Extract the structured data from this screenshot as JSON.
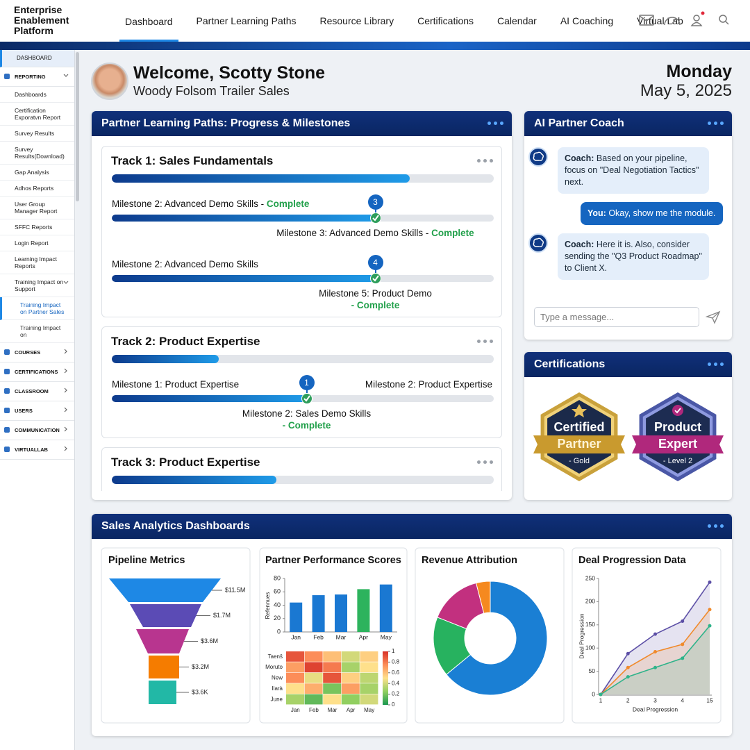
{
  "header": {
    "logo": "Enterprise Enablement Platform",
    "nav": [
      "Dashboard",
      "Partner Learning Paths",
      "Resource Library",
      "Certifications",
      "Calendar",
      "AI Coaching",
      "Virtual Lab"
    ]
  },
  "sidebar": {
    "home": "DASHBOARD",
    "sections": [
      {
        "title": "REPORTING",
        "items": [
          "Dashboards",
          "Certification Exporatvn Report",
          "Survey Results",
          "Survey Results(Download)",
          "Gap Analysis",
          "Adhos Reports",
          "User Group Manager Report",
          "SFFC Reports",
          "Login Report",
          "Learning Impact Reports",
          {
            "label": "Training Impact on Support",
            "items": [
              "Training Impact on Partner Sales",
              "Training Impact on"
            ]
          }
        ]
      },
      {
        "title": "COURSES"
      },
      {
        "title": "CERTIFICATIONS"
      },
      {
        "title": "CLASSROOM"
      },
      {
        "title": "USERS"
      },
      {
        "title": "COMMUNICATION"
      },
      {
        "title": "VIRTUALLAB"
      }
    ]
  },
  "welcome": {
    "title": "Welcome, Scotty Stone",
    "subtitle": "Woody Folsom Trailer Sales",
    "day": "Monday",
    "date": "May 5, 2025"
  },
  "learning_paths": {
    "title": "Partner Learning Paths: Progress & Milestones",
    "tracks": [
      {
        "title": "Track 1: Sales Fundamentals",
        "progress": 78,
        "milestones": [
          {
            "label": "Milestone 2: Advanced Demo Skills -",
            "status": "Complete",
            "step": 3,
            "progress": 69,
            "note": "Milestone 3: Advanced Demo Skills -",
            "note_status": "Complete"
          },
          {
            "label": "Milestone 2: Advanced Demo Skills",
            "step": 4,
            "progress": 69,
            "note": "Milestone 5: Product Demo",
            "note_status": "- Complete"
          }
        ]
      },
      {
        "title": "Track 2: Product Expertise",
        "progress": 28,
        "milestones": [
          {
            "label": "Milestone 1: Product Expertise",
            "label_right": "Milestone 2: Product Expertise",
            "step": 1,
            "progress": 51,
            "note": "Milestone 2: Sales Demo Skills",
            "note_status": "- Complete"
          }
        ]
      },
      {
        "title": "Track 3: Product Expertise",
        "progress": 43
      }
    ]
  },
  "ai_coach": {
    "title": "AI Partner Coach",
    "messages": [
      {
        "speaker": "Coach:",
        "text": "Based on your pipeline, focus on \"Deal Negotiation Tactics\" next."
      },
      {
        "speaker": "You:",
        "text": "Okay, show me the module."
      },
      {
        "speaker": "Coach:",
        "text": "Here it is. Also, consider sending the \"Q3 Product Roadmap\" to Client X."
      }
    ],
    "placeholder": "Type a message..."
  },
  "certifications": {
    "title": "Certifications",
    "badges": [
      {
        "top": "Certified",
        "ribbon": "Partner",
        "level": "- Gold"
      },
      {
        "top": "Product",
        "ribbon": "Expert",
        "level": "- Level 2"
      }
    ]
  },
  "analytics": {
    "title": "Sales Analytics Dashboards"
  },
  "chart_data": [
    {
      "type": "funnel",
      "title": "Pipeline Metrics",
      "values": [
        11500000,
        1700000,
        3600000,
        3200000,
        3600
      ],
      "value_labels": [
        "$11.5M",
        "$1.7M",
        "$3.6M",
        "$3.2M",
        "$3.6K"
      ],
      "colors": [
        "#1e88e5",
        "#5b4bb5",
        "#b8358f",
        "#f57c00",
        "#22b8a6"
      ]
    },
    {
      "type": "bar",
      "title": "Partner Performance Scores",
      "ylabel": "Refennues",
      "categories": [
        "Jan",
        "Feb",
        "Mar",
        "Apr",
        "May"
      ],
      "values": [
        44,
        55,
        56,
        64,
        71
      ],
      "colors": [
        "#1a78d2",
        "#1a78d2",
        "#1a78d2",
        "#2db35d",
        "#1a78d2"
      ],
      "ylim": [
        0,
        80
      ],
      "yticks": [
        0,
        20,
        40,
        60,
        80
      ]
    },
    {
      "type": "heatmap",
      "x": [
        "Jan",
        "Feb",
        "Mar",
        "Apr",
        "May"
      ],
      "y": [
        "Taenš",
        "Moruto",
        "New",
        "Ilarà",
        "June"
      ],
      "values": [
        [
          0.9,
          0.75,
          0.6,
          0.4,
          0.55
        ],
        [
          0.7,
          0.95,
          0.8,
          0.3,
          0.5
        ],
        [
          0.75,
          0.45,
          0.9,
          0.55,
          0.35
        ],
        [
          0.5,
          0.65,
          0.2,
          0.7,
          0.3
        ],
        [
          0.3,
          0.15,
          0.5,
          0.25,
          0.4
        ]
      ],
      "zlim": [
        0,
        1
      ],
      "zticks": [
        0,
        0.2,
        0.4,
        0.6,
        0.8,
        1
      ]
    },
    {
      "type": "pie",
      "title": "Revenue Attribution",
      "donut": true,
      "values": [
        64,
        17,
        15,
        4
      ],
      "colors": [
        "#1a7fd4",
        "#27b25f",
        "#c2307f",
        "#f5891f"
      ]
    },
    {
      "type": "line",
      "title": "Deal Progression Data",
      "xlabel": "Deal Progression",
      "ylabel": "Deal Progression",
      "categories": [
        "1",
        "2",
        "3",
        "4",
        "15"
      ],
      "ylim": [
        0,
        250
      ],
      "yticks": [
        0,
        50,
        100,
        150,
        200,
        250
      ],
      "fill": true,
      "series": [
        {
          "color": "#5c4fa6",
          "values": [
            0,
            88,
            130,
            158,
            242
          ]
        },
        {
          "color": "#f08a2c",
          "values": [
            0,
            58,
            92,
            108,
            183
          ]
        },
        {
          "color": "#2fb38a",
          "values": [
            0,
            38,
            58,
            78,
            148
          ]
        }
      ]
    }
  ]
}
